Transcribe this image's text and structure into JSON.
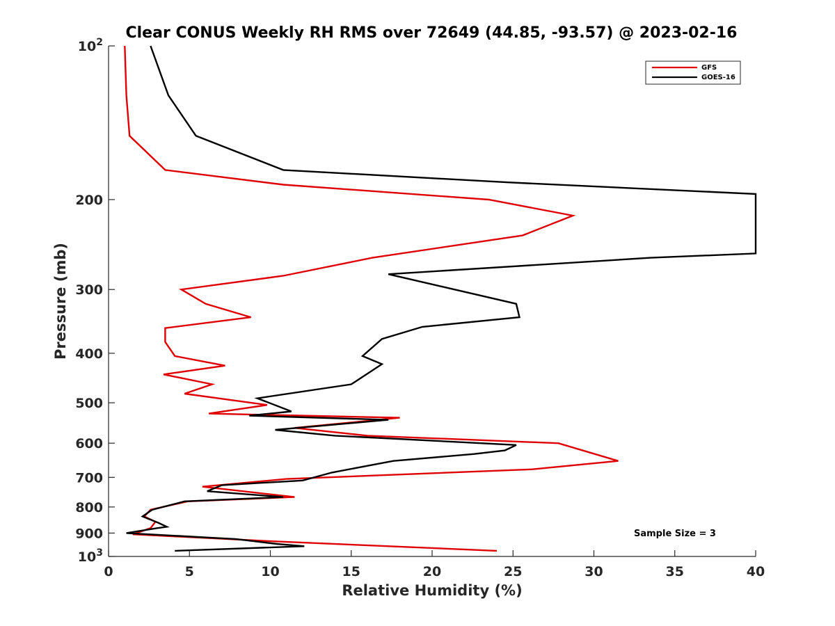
{
  "chart_data": {
    "type": "line",
    "title": "Clear CONUS Weekly RH RMS over 72649 (44.85, -93.57) @ 2023-02-16",
    "xlabel": "Relative Humidity (%)",
    "ylabel": "Pressure (mb)",
    "xlim": [
      0,
      40
    ],
    "ylim": [
      100,
      1000
    ],
    "y_scale": "log",
    "y_reversed": true,
    "grid": false,
    "legend_position": "top-right",
    "x_ticks": [
      "0",
      "5",
      "10",
      "15",
      "20",
      "25",
      "30",
      "35",
      "40"
    ],
    "y_ticks": [
      {
        "value": 100,
        "label": "10",
        "sup": "2"
      },
      {
        "value": 200,
        "label": "200",
        "sup": ""
      },
      {
        "value": 300,
        "label": "300",
        "sup": ""
      },
      {
        "value": 400,
        "label": "400",
        "sup": ""
      },
      {
        "value": 500,
        "label": "500",
        "sup": ""
      },
      {
        "value": 600,
        "label": "600",
        "sup": ""
      },
      {
        "value": 700,
        "label": "700",
        "sup": ""
      },
      {
        "value": 800,
        "label": "800",
        "sup": ""
      },
      {
        "value": 900,
        "label": "900",
        "sup": ""
      },
      {
        "value": 1000,
        "label": "10",
        "sup": "3"
      }
    ],
    "annotation": "Sample Size = 3",
    "series": [
      {
        "name": "GFS",
        "color": "#e00000",
        "points": [
          [
            1.0,
            100
          ],
          [
            1.1,
            125
          ],
          [
            1.3,
            150
          ],
          [
            3.5,
            175
          ],
          [
            10.8,
            187
          ],
          [
            23.5,
            200
          ],
          [
            28.7,
            215
          ],
          [
            25.6,
            235
          ],
          [
            16.3,
            260
          ],
          [
            10.8,
            282
          ],
          [
            4.5,
            300
          ],
          [
            6.0,
            320
          ],
          [
            8.8,
            340
          ],
          [
            3.5,
            357
          ],
          [
            3.5,
            380
          ],
          [
            4.1,
            405
          ],
          [
            7.2,
            423
          ],
          [
            3.4,
            440
          ],
          [
            6.4,
            460
          ],
          [
            4.7,
            480
          ],
          [
            9.8,
            505
          ],
          [
            6.2,
            525
          ],
          [
            18.0,
            535
          ],
          [
            11.5,
            560
          ],
          [
            16.0,
            580
          ],
          [
            27.8,
            600
          ],
          [
            31.5,
            650
          ],
          [
            26.2,
            675
          ],
          [
            11.0,
            705
          ],
          [
            5.8,
            730
          ],
          [
            11.5,
            765
          ],
          [
            4.9,
            780
          ],
          [
            2.6,
            810
          ],
          [
            2.2,
            835
          ],
          [
            2.9,
            855
          ],
          [
            2.6,
            880
          ],
          [
            1.5,
            905
          ],
          [
            10.5,
            935
          ],
          [
            24.0,
            975
          ]
        ]
      },
      {
        "name": "GOES-16",
        "color": "#000000",
        "points": [
          [
            2.6,
            100
          ],
          [
            3.7,
            125
          ],
          [
            5.4,
            150
          ],
          [
            10.8,
            175
          ],
          [
            24.6,
            185
          ],
          [
            40.0,
            195
          ],
          [
            40.0,
            255
          ],
          [
            33.5,
            260
          ],
          [
            17.3,
            280
          ],
          [
            25.2,
            320
          ],
          [
            25.4,
            340
          ],
          [
            19.4,
            355
          ],
          [
            16.9,
            375
          ],
          [
            15.7,
            405
          ],
          [
            16.9,
            420
          ],
          [
            15.0,
            460
          ],
          [
            9.2,
            490
          ],
          [
            11.3,
            520
          ],
          [
            8.7,
            530
          ],
          [
            17.3,
            540
          ],
          [
            10.3,
            565
          ],
          [
            14.0,
            580
          ],
          [
            25.2,
            605
          ],
          [
            24.5,
            620
          ],
          [
            22.6,
            630
          ],
          [
            17.6,
            650
          ],
          [
            13.8,
            685
          ],
          [
            12.0,
            710
          ],
          [
            7.0,
            725
          ],
          [
            6.1,
            745
          ],
          [
            10.8,
            765
          ],
          [
            4.7,
            780
          ],
          [
            2.7,
            810
          ],
          [
            2.1,
            835
          ],
          [
            3.1,
            860
          ],
          [
            3.6,
            875
          ],
          [
            3.0,
            880
          ],
          [
            1.1,
            900
          ],
          [
            7.9,
            925
          ],
          [
            10.4,
            945
          ],
          [
            12.1,
            955
          ],
          [
            4.1,
            975
          ]
        ]
      }
    ]
  }
}
